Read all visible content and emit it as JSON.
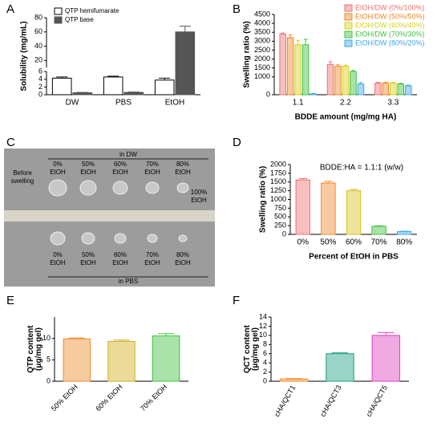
{
  "chart_data": [
    {
      "type": "bar",
      "panel": "A",
      "ylabel": "Solubility  (mg/mL)",
      "categories": [
        "DW",
        "PBS",
        "EtOH"
      ],
      "series": [
        {
          "name": "QTP hemifumarate",
          "color": "#ffffff",
          "values": [
            4.3,
            4.6,
            3.8
          ],
          "errors": [
            0.3,
            0.2,
            0.5
          ]
        },
        {
          "name": "QTP base",
          "color": "#555555",
          "values": [
            0.5,
            0.6,
            60
          ],
          "errors": [
            0.1,
            0.1,
            8
          ]
        }
      ],
      "ylim": [
        0,
        80
      ],
      "yticks": [
        0,
        2,
        4,
        6,
        20,
        40,
        60,
        80
      ],
      "axis_break": [
        6,
        10
      ],
      "legend": "upper left"
    },
    {
      "type": "bar",
      "panel": "B",
      "xlabel": "BDDE amount (mg/mg HA)",
      "ylabel": "Swelling ratio (%)",
      "categories": [
        "1.1",
        "2.2",
        "3.3"
      ],
      "series": [
        {
          "name": "EtOH/DW (0%/100%)",
          "color": "#f07070",
          "values": [
            3400,
            1700,
            650
          ],
          "errors": [
            60,
            150,
            40
          ]
        },
        {
          "name": "EtOH/DW (50%/50%)",
          "color": "#f08a2a",
          "values": [
            3200,
            1600,
            650
          ],
          "errors": [
            150,
            80,
            40
          ]
        },
        {
          "name": "EtOH/DW (60%/40%)",
          "color": "#d8d020",
          "values": [
            2800,
            1600,
            650
          ],
          "errors": [
            250,
            60,
            40
          ]
        },
        {
          "name": "EtOH/DW (70%/30%)",
          "color": "#40c040",
          "values": [
            2800,
            1300,
            600
          ],
          "errors": [
            300,
            60,
            40
          ]
        },
        {
          "name": "EtOH/DW (80%/20%)",
          "color": "#40a8e8",
          "values": [
            50,
            600,
            500
          ],
          "errors": [
            20,
            80,
            40
          ]
        }
      ],
      "ylim": [
        0,
        4500
      ],
      "yticks": [
        0,
        1000,
        1500,
        2000,
        2500,
        3000,
        3500,
        4000,
        4500
      ],
      "legend": "upper right"
    },
    {
      "type": "bar",
      "panel": "D",
      "xlabel": "Percent of EtOH in PBS",
      "ylabel": "Swelling ratio (%)",
      "annotation": "BDDE:HA = 1.1:1 (w/w)",
      "categories": [
        "0%",
        "50%",
        "60%",
        "70%",
        "80%"
      ],
      "values": [
        1560,
        1470,
        1250,
        230,
        80
      ],
      "errors": [
        40,
        50,
        40,
        15,
        10
      ],
      "colors": [
        "#f07070",
        "#f08a2a",
        "#d8c020",
        "#40c040",
        "#40a8e8"
      ],
      "ylim": [
        0,
        2000
      ],
      "yticks": [
        0,
        250,
        500,
        750,
        1000,
        1250,
        1500,
        1750,
        2000
      ]
    },
    {
      "type": "bar",
      "panel": "E",
      "ylabel": [
        "QTP content",
        "(μg/mg gel)"
      ],
      "categories": [
        "50% EtOH",
        "60% EtOH",
        "70% EtOH"
      ],
      "values": [
        9.9,
        9.3,
        10.6
      ],
      "errors": [
        0.2,
        0.3,
        0.5
      ],
      "colors": [
        "#f08a2a",
        "#d0b020",
        "#40c040"
      ],
      "ylim": [
        0,
        15
      ],
      "yticks": [
        0,
        5,
        10
      ],
      "xtick_rotation": -45
    },
    {
      "type": "bar",
      "panel": "F",
      "ylabel": [
        "QCT content",
        "(μg/mg gel)"
      ],
      "categories": [
        "cHA/QCT1",
        "cHA/QCT3",
        "cHA/QCT5"
      ],
      "values": [
        0.5,
        6.0,
        10.0
      ],
      "errors": [
        0.1,
        0.2,
        0.6
      ],
      "colors": [
        "#f08a2a",
        "#20a080",
        "#e040c0"
      ],
      "ylim": [
        0,
        14
      ],
      "yticks": [
        0,
        2,
        4,
        6,
        8,
        10,
        12,
        14
      ],
      "xtick_rotation": -60
    }
  ],
  "photo": {
    "panel": "C",
    "top_caption": "in DW",
    "bottom_caption": "in PBS",
    "before": [
      "Before",
      "swelling"
    ],
    "top_labels": [
      [
        "0%",
        "EtOH"
      ],
      [
        "50%",
        "EtOH"
      ],
      [
        "60%",
        "EtOH"
      ],
      [
        "70%",
        "EtOH"
      ],
      [
        "80%",
        "EtOH"
      ]
    ],
    "extra_label": [
      "100%",
      "EtOH"
    ],
    "bottom_labels": [
      [
        "0%",
        "EtOH"
      ],
      [
        "50%",
        "EtOH"
      ],
      [
        "60%",
        "EtOH"
      ],
      [
        "70%",
        "EtOH"
      ],
      [
        "80%",
        "EtOH"
      ]
    ]
  }
}
